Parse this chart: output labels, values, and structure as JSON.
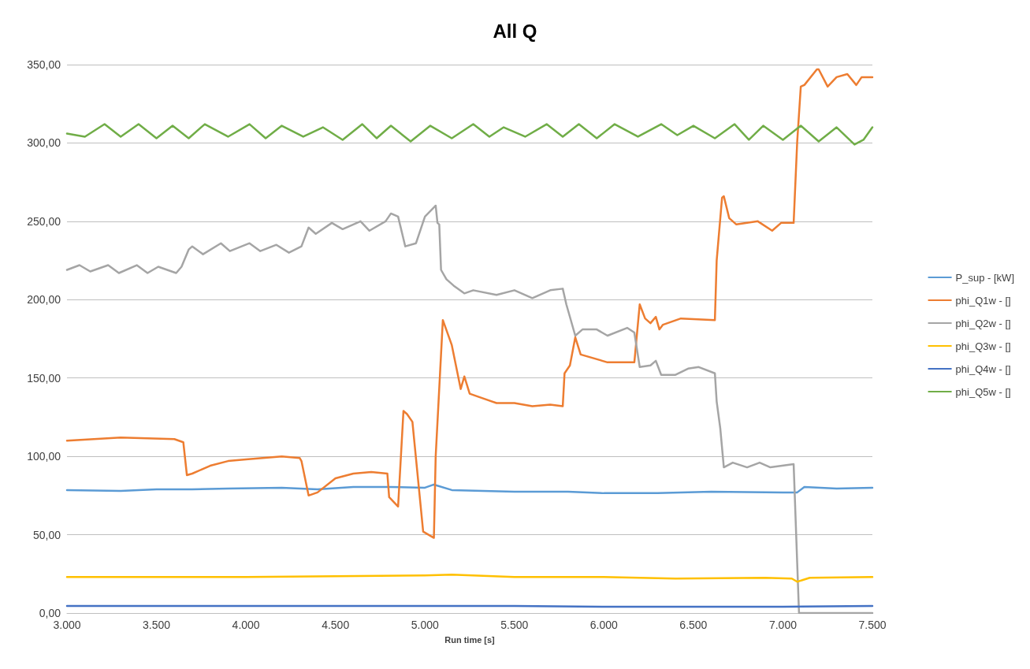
{
  "chart_data": {
    "type": "line",
    "title": "All Q",
    "xlabel": "Run time [s]",
    "xlim": [
      3000,
      7500
    ],
    "xticks": [
      {
        "value": 3000,
        "label": "3.000"
      },
      {
        "value": 3500,
        "label": "3.500"
      },
      {
        "value": 4000,
        "label": "4.000"
      },
      {
        "value": 4500,
        "label": "4.500"
      },
      {
        "value": 5000,
        "label": "5.000"
      },
      {
        "value": 5500,
        "label": "5.500"
      },
      {
        "value": 6000,
        "label": "6.000"
      },
      {
        "value": 6500,
        "label": "6.500"
      },
      {
        "value": 7000,
        "label": "7.000"
      },
      {
        "value": 7500,
        "label": "7.500"
      }
    ],
    "ylim": [
      0,
      350
    ],
    "yticks": [
      {
        "value": 0,
        "label": "0,00"
      },
      {
        "value": 50,
        "label": "50,00"
      },
      {
        "value": 100,
        "label": "100,00"
      },
      {
        "value": 150,
        "label": "150,00"
      },
      {
        "value": 200,
        "label": "200,00"
      },
      {
        "value": 250,
        "label": "250,00"
      },
      {
        "value": 300,
        "label": "300,00"
      },
      {
        "value": 350,
        "label": "350,00"
      }
    ],
    "grid": "y",
    "legend": "right",
    "marker": "none",
    "line_style": "solid",
    "series": [
      {
        "name": "P_sup - [kW]",
        "color": "#5b9bd5",
        "x": [
          3000,
          3300,
          3500,
          3700,
          3900,
          4200,
          4400,
          4600,
          4800,
          5000,
          5050,
          5150,
          5500,
          5800,
          6000,
          6300,
          6600,
          7000,
          7080,
          7120,
          7300,
          7500
        ],
        "values": [
          78.5,
          78,
          79,
          79,
          79.5,
          80,
          79,
          80.5,
          80.5,
          80,
          82,
          78.5,
          77.5,
          77.5,
          76.5,
          76.5,
          77.5,
          77,
          77,
          80.5,
          79.5,
          80
        ]
      },
      {
        "name": "phi_Q1w - []",
        "color": "#ed7d31",
        "x": [
          3000,
          3300,
          3600,
          3650,
          3670,
          3700,
          3800,
          3900,
          4000,
          4200,
          4300,
          4310,
          4350,
          4400,
          4500,
          4600,
          4700,
          4790,
          4800,
          4850,
          4880,
          4900,
          4930,
          4990,
          5050,
          5060,
          5100,
          5150,
          5200,
          5220,
          5250,
          5300,
          5400,
          5500,
          5600,
          5700,
          5770,
          5780,
          5810,
          5840,
          5870,
          6020,
          6170,
          6200,
          6230,
          6260,
          6290,
          6310,
          6330,
          6430,
          6620,
          6630,
          6660,
          6670,
          6700,
          6740,
          6860,
          6940,
          6990,
          7060,
          7080,
          7100,
          7120,
          7190,
          7200,
          7250,
          7300,
          7360,
          7410,
          7440,
          7500
        ],
        "values": [
          110,
          112,
          111,
          109,
          88,
          89,
          94,
          97,
          98,
          100,
          99,
          97,
          75,
          77,
          86,
          89,
          90,
          89,
          74,
          68,
          129,
          127,
          122,
          52,
          48,
          100,
          187,
          171,
          143,
          151,
          140,
          138,
          134,
          134,
          132,
          133,
          132,
          153,
          158,
          176,
          165,
          160,
          160,
          197,
          188,
          185,
          189,
          181,
          184,
          188,
          187,
          225,
          265,
          266,
          252,
          248,
          250,
          244,
          249,
          249,
          301,
          336,
          337,
          347,
          347,
          336,
          342,
          344,
          337,
          342,
          342
        ]
      },
      {
        "name": "phi_Q2w - []",
        "color": "#a5a5a5",
        "x": [
          3000,
          3070,
          3130,
          3230,
          3290,
          3390,
          3450,
          3510,
          3610,
          3640,
          3680,
          3700,
          3760,
          3860,
          3910,
          4020,
          4080,
          4170,
          4240,
          4310,
          4350,
          4390,
          4480,
          4540,
          4640,
          4690,
          4780,
          4810,
          4850,
          4890,
          4950,
          5000,
          5060,
          5070,
          5080,
          5090,
          5120,
          5160,
          5220,
          5270,
          5400,
          5500,
          5600,
          5700,
          5770,
          5790,
          5840,
          5880,
          5960,
          6020,
          6130,
          6170,
          6200,
          6260,
          6290,
          6320,
          6400,
          6470,
          6530,
          6620,
          6630,
          6650,
          6670,
          6720,
          6800,
          6870,
          6930,
          7060,
          7090,
          7500
        ],
        "values": [
          219,
          222,
          218,
          222,
          217,
          222,
          217,
          221,
          217,
          221,
          232,
          234,
          229,
          236,
          231,
          236,
          231,
          235,
          230,
          234,
          246,
          242,
          249,
          245,
          250,
          244,
          250,
          255,
          253,
          234,
          236,
          253,
          260,
          249,
          248,
          219,
          213,
          209,
          204,
          206,
          203,
          206,
          201,
          206,
          207,
          197,
          177,
          181,
          181,
          177,
          182,
          179,
          157,
          158,
          161,
          152,
          152,
          156,
          157,
          153,
          135,
          118,
          93,
          96,
          93,
          96,
          93,
          95,
          0,
          0
        ]
      },
      {
        "name": "phi_Q3w - []",
        "color": "#ffc000",
        "x": [
          3000,
          3500,
          4000,
          4500,
          5000,
          5150,
          5500,
          6000,
          6400,
          6900,
          7050,
          7080,
          7150,
          7500
        ],
        "values": [
          23,
          23,
          23,
          23.5,
          24,
          24.5,
          23,
          23,
          22,
          22.5,
          22,
          20,
          22.5,
          23
        ]
      },
      {
        "name": "phi_Q4w - []",
        "color": "#4472c4",
        "x": [
          3000,
          4000,
          5500,
          6000,
          7000,
          7500
        ],
        "values": [
          4.5,
          4.5,
          4.5,
          4,
          4,
          4.5
        ]
      },
      {
        "name": "phi_Q5w - []",
        "color": "#70ad47",
        "x": [
          3000,
          3100,
          3210,
          3300,
          3400,
          3500,
          3590,
          3680,
          3770,
          3900,
          4020,
          4110,
          4200,
          4320,
          4430,
          4540,
          4650,
          4730,
          4810,
          4920,
          5030,
          5150,
          5270,
          5360,
          5440,
          5560,
          5680,
          5770,
          5860,
          5960,
          6060,
          6190,
          6320,
          6410,
          6500,
          6620,
          6730,
          6810,
          6890,
          7000,
          7100,
          7200,
          7300,
          7400,
          7450,
          7500
        ],
        "values": [
          306,
          304,
          312,
          304,
          312,
          303,
          311,
          303,
          312,
          304,
          312,
          303,
          311,
          304,
          310,
          302,
          312,
          303,
          311,
          301,
          311,
          303,
          312,
          304,
          310,
          304,
          312,
          304,
          312,
          303,
          312,
          304,
          312,
          305,
          311,
          303,
          312,
          302,
          311,
          302,
          311,
          301,
          310,
          299,
          302,
          310
        ]
      }
    ]
  }
}
